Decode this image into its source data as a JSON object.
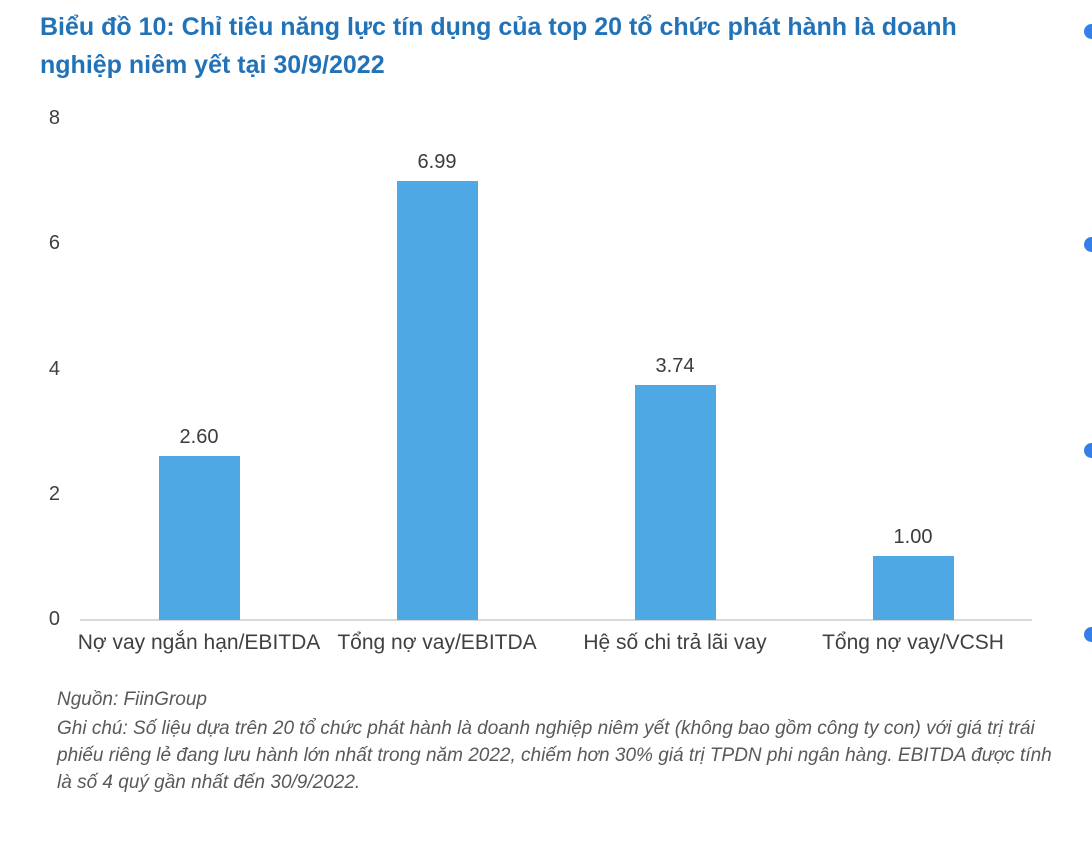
{
  "title": {
    "lines": [
      "Biểu đồ 10: Chỉ tiêu năng lực tín dụng của top 20 tổ chức phát hành là doanh",
      "nghiệp niêm yết tại 30/9/2022"
    ],
    "color": "#2272B8"
  },
  "chart_data": {
    "type": "bar",
    "title": "Biểu đồ 10: Chỉ tiêu năng lực tín dụng của top 20 tổ chức phát hành là doanh nghiệp niêm yết tại 30/9/2022",
    "categories": [
      "Nợ vay ngắn hạn/EBITDA",
      "Tổng nợ vay/EBITDA",
      "Hệ số chi trả lãi vay",
      "Tổng nợ vay/VCSH"
    ],
    "values": [
      2.6,
      6.99,
      3.74,
      1.0
    ],
    "value_labels": [
      "2.60",
      "6.99",
      "3.74",
      "1.00"
    ],
    "xlabel": "",
    "ylabel": "",
    "y_ticks": [
      0,
      2,
      4,
      6,
      8
    ],
    "ylim": [
      0,
      8
    ],
    "grid": false,
    "legend": false,
    "bar_color": "#4DA8E4",
    "axis_line_color": "#D9D9D9"
  },
  "footer": {
    "source": "Nguồn: FiinGroup",
    "note": "Ghi chú: Số liệu dựa trên 20 tổ chức phát hành là doanh nghiệp niêm yết (không bao gồm công ty con) với giá trị trái phiếu riêng lẻ đang lưu hành lớn nhất trong năm 2022, chiếm hơn 30% giá trị TPDN phi ngân hàng. EBITDA được tính là số 4 quý gần nhất đến 30/9/2022."
  },
  "side_bullets": {
    "count": 4,
    "color": "#3580E8"
  }
}
